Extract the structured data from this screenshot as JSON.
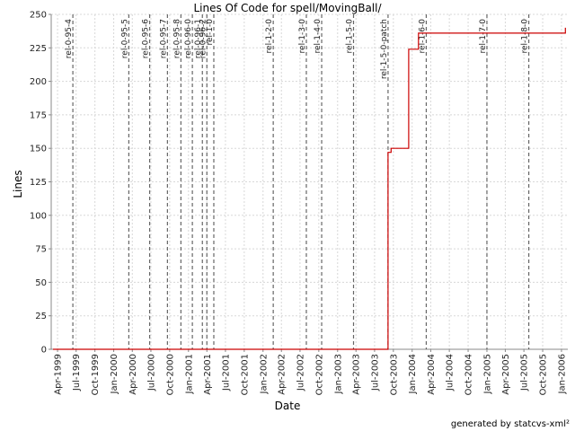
{
  "chart_data": {
    "type": "line",
    "title": "Lines Of Code for spell/MovingBall/",
    "xlabel": "Date",
    "ylabel": "Lines",
    "footer": "generated by statcvs-xml²",
    "grid": true,
    "line_color": "#cc0000",
    "tag_line_color": "#666666",
    "xlim": [
      "1999-03-01",
      "2006-02-01"
    ],
    "ylim": [
      0,
      250
    ],
    "y_ticks": [
      0,
      25,
      50,
      75,
      100,
      125,
      150,
      175,
      200,
      225,
      250
    ],
    "x_ticks": [
      {
        "date": "1999-04-01",
        "label": "Apr-1999"
      },
      {
        "date": "1999-07-01",
        "label": "Jul-1999"
      },
      {
        "date": "1999-10-01",
        "label": "Oct-1999"
      },
      {
        "date": "2000-01-01",
        "label": "Jan-2000"
      },
      {
        "date": "2000-04-01",
        "label": "Apr-2000"
      },
      {
        "date": "2000-07-01",
        "label": "Jul-2000"
      },
      {
        "date": "2000-10-01",
        "label": "Oct-2000"
      },
      {
        "date": "2001-01-01",
        "label": "Jan-2001"
      },
      {
        "date": "2001-04-01",
        "label": "Apr-2001"
      },
      {
        "date": "2001-07-01",
        "label": "Jul-2001"
      },
      {
        "date": "2001-10-01",
        "label": "Oct-2001"
      },
      {
        "date": "2002-01-01",
        "label": "Jan-2002"
      },
      {
        "date": "2002-04-01",
        "label": "Apr-2002"
      },
      {
        "date": "2002-07-01",
        "label": "Jul-2002"
      },
      {
        "date": "2002-10-01",
        "label": "Oct-2002"
      },
      {
        "date": "2003-01-01",
        "label": "Jan-2003"
      },
      {
        "date": "2003-04-01",
        "label": "Apr-2003"
      },
      {
        "date": "2003-07-01",
        "label": "Jul-2003"
      },
      {
        "date": "2003-10-01",
        "label": "Oct-2003"
      },
      {
        "date": "2004-01-01",
        "label": "Jan-2004"
      },
      {
        "date": "2004-04-01",
        "label": "Apr-2004"
      },
      {
        "date": "2004-07-01",
        "label": "Jul-2004"
      },
      {
        "date": "2004-10-01",
        "label": "Oct-2004"
      },
      {
        "date": "2005-01-01",
        "label": "Jan-2005"
      },
      {
        "date": "2005-04-01",
        "label": "Apr-2005"
      },
      {
        "date": "2005-07-01",
        "label": "Jul-2005"
      },
      {
        "date": "2005-10-01",
        "label": "Oct-2005"
      },
      {
        "date": "2006-01-01",
        "label": "Jan-2006"
      }
    ],
    "tags": [
      {
        "date": "1999-06-15",
        "label": "rel-0-95-4"
      },
      {
        "date": "2000-03-15",
        "label": "rel-0-95-5"
      },
      {
        "date": "2000-06-25",
        "label": "rel-0-95-6"
      },
      {
        "date": "2000-09-20",
        "label": "rel-0-95-7"
      },
      {
        "date": "2000-11-25",
        "label": "rel-0-95-8"
      },
      {
        "date": "2001-01-20",
        "label": "rel-0-96-0"
      },
      {
        "date": "2001-03-10",
        "label": "rel-0-96-1"
      },
      {
        "date": "2001-04-01",
        "label": "rel-0-96-2"
      },
      {
        "date": "2001-05-05",
        "label": "rel-1-0"
      },
      {
        "date": "2002-02-20",
        "label": "rel-1-2-0"
      },
      {
        "date": "2002-08-01",
        "label": "rel-1-3-0"
      },
      {
        "date": "2002-10-15",
        "label": "rel-1-4-0"
      },
      {
        "date": "2003-03-20",
        "label": "rel-1-5-0"
      },
      {
        "date": "2003-09-05",
        "label": "rel-1-5-0-patch"
      },
      {
        "date": "2004-03-10",
        "label": "rel-1-6-0"
      },
      {
        "date": "2005-01-01",
        "label": "rel-1-7-0"
      },
      {
        "date": "2005-07-25",
        "label": "rel-1-8-0"
      }
    ],
    "series": [
      {
        "points": [
          {
            "x": "1999-03-10",
            "y": 0
          },
          {
            "x": "2003-09-05",
            "y": 0
          },
          {
            "x": "2003-09-05",
            "y": 147
          },
          {
            "x": "2003-09-20",
            "y": 147
          },
          {
            "x": "2003-09-20",
            "y": 150
          },
          {
            "x": "2003-12-15",
            "y": 150
          },
          {
            "x": "2003-12-15",
            "y": 224
          },
          {
            "x": "2004-02-01",
            "y": 224
          },
          {
            "x": "2004-02-01",
            "y": 236
          },
          {
            "x": "2006-01-20",
            "y": 236
          },
          {
            "x": "2006-01-20",
            "y": 240
          }
        ]
      }
    ]
  }
}
